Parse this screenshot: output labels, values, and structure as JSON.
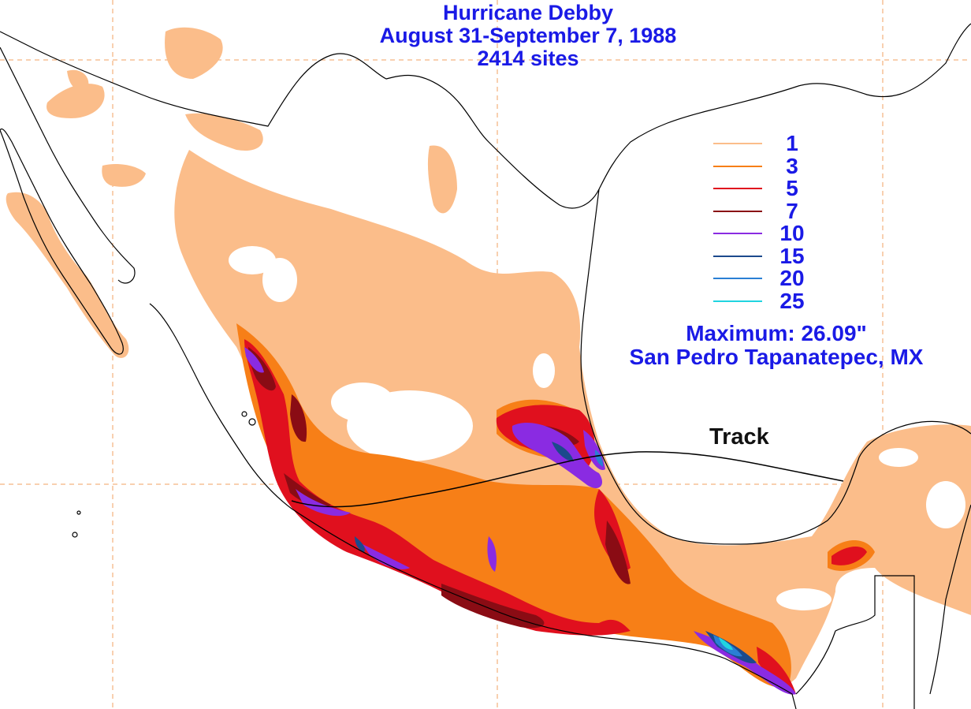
{
  "title": {
    "line1": "Hurricane Debby",
    "line2": "August 31-September 7, 1988",
    "line3": "2414 sites"
  },
  "legend": {
    "items": [
      {
        "label": "1",
        "color": "#fbbd8a"
      },
      {
        "label": "3",
        "color": "#f77f17"
      },
      {
        "label": "5",
        "color": "#e0101e"
      },
      {
        "label": "7",
        "color": "#8a0c14"
      },
      {
        "label": "10",
        "color": "#8a2be2"
      },
      {
        "label": "15",
        "color": "#1c4a8c"
      },
      {
        "label": "20",
        "color": "#2a7fd4"
      },
      {
        "label": "25",
        "color": "#21d4e0"
      }
    ]
  },
  "maximum": {
    "line1": "Maximum: 26.09\"",
    "line2": "San Pedro Tapanatepec, MX"
  },
  "track": {
    "label": "Track"
  },
  "colors": {
    "grid": "#f0a060",
    "coastline": "#000000",
    "background": "#ffffff"
  }
}
